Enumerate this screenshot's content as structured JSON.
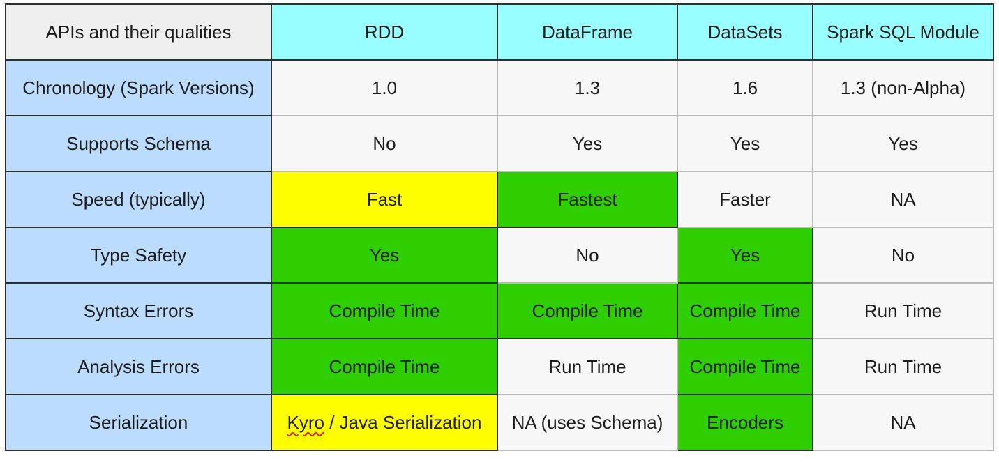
{
  "table": {
    "corner_label": "APIs and their qualities",
    "columns": [
      "RDD",
      "DataFrame",
      "DataSets",
      "Spark SQL Module"
    ],
    "rows": [
      {
        "label": "Chronology (Spark Versions)",
        "cells": [
          "1.0",
          "1.3",
          "1.6",
          "1.3 (non-Alpha)"
        ],
        "highlights": [
          "none",
          "none",
          "none",
          "none"
        ]
      },
      {
        "label": "Supports Schema",
        "cells": [
          "No",
          "Yes",
          "Yes",
          "Yes"
        ],
        "highlights": [
          "none",
          "none",
          "none",
          "none"
        ]
      },
      {
        "label": "Speed (typically)",
        "cells": [
          "Fast",
          "Fastest",
          "Faster",
          "NA"
        ],
        "highlights": [
          "yellow",
          "green",
          "none",
          "none"
        ]
      },
      {
        "label": "Type Safety",
        "cells": [
          "Yes",
          "No",
          "Yes",
          "No"
        ],
        "highlights": [
          "green",
          "none",
          "green",
          "none"
        ]
      },
      {
        "label": "Syntax Errors",
        "cells": [
          "Compile Time",
          "Compile Time",
          "Compile Time",
          "Run Time"
        ],
        "highlights": [
          "green",
          "green",
          "green",
          "none"
        ]
      },
      {
        "label": "Analysis Errors",
        "cells": [
          "Compile Time",
          "Run Time",
          "Compile Time",
          "Run Time"
        ],
        "highlights": [
          "green",
          "none",
          "green",
          "none"
        ]
      },
      {
        "label": "Serialization",
        "cells": [
          "Kyro / Java Serialization",
          "NA (uses Schema)",
          "Encoders",
          "NA"
        ],
        "highlights": [
          "yellow",
          "none",
          "green",
          "none"
        ]
      }
    ],
    "serialization_rdd_misspelled": "Kyro",
    "serialization_rdd_rest": " / Java Serialization"
  },
  "colors": {
    "corner": "#efefef",
    "column_header": "#99fefe",
    "row_header": "#bcdcfd",
    "neutral": "#f7f7f7",
    "yellow": "#fefe00",
    "green": "#2ece00",
    "border": "#2f2f2f"
  }
}
